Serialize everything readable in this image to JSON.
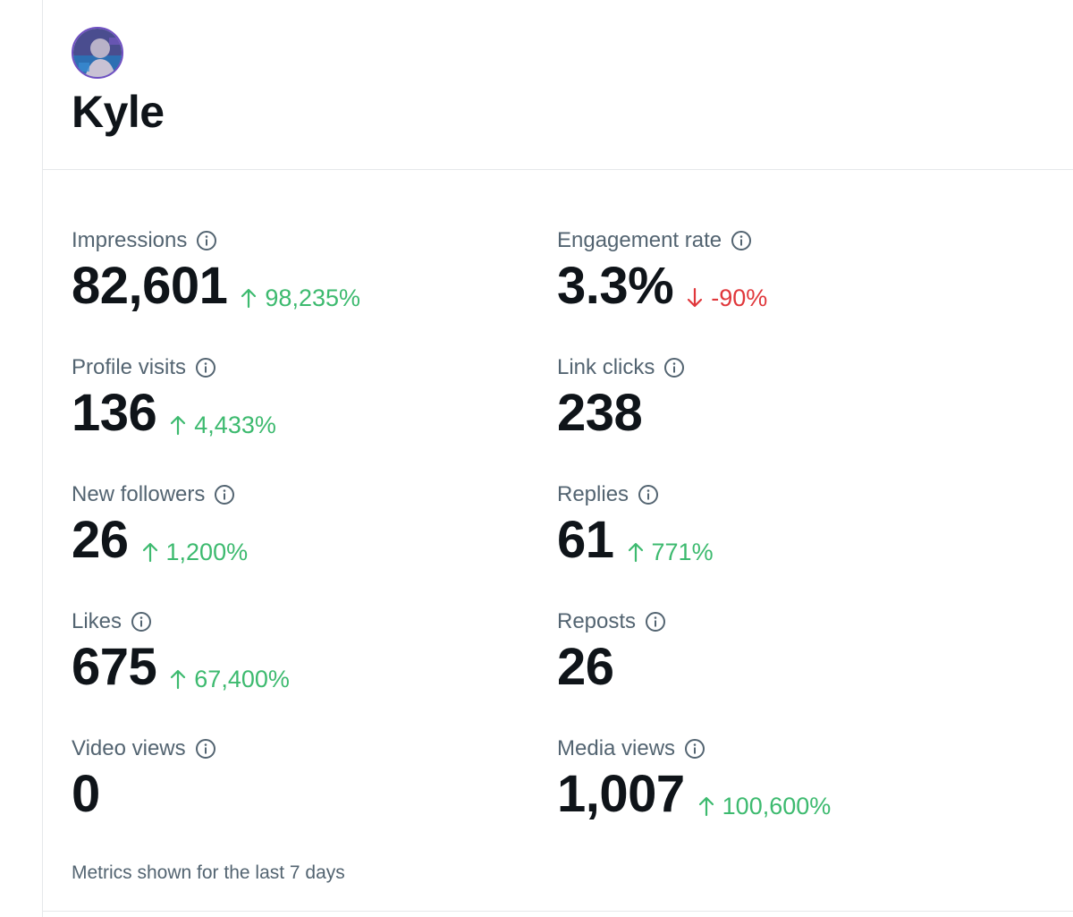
{
  "profile": {
    "name": "Kyle"
  },
  "colors": {
    "positive": "#3dba6f",
    "negative": "#e0373b",
    "label": "#536471"
  },
  "metrics": {
    "impressions": {
      "label": "Impressions",
      "value": "82,601",
      "change": "98,235%",
      "direction": "up"
    },
    "engagement_rate": {
      "label": "Engagement rate",
      "value": "3.3%",
      "change": "-90%",
      "direction": "down"
    },
    "profile_visits": {
      "label": "Profile visits",
      "value": "136",
      "change": "4,433%",
      "direction": "up"
    },
    "link_clicks": {
      "label": "Link clicks",
      "value": "238"
    },
    "new_followers": {
      "label": "New followers",
      "value": "26",
      "change": "1,200%",
      "direction": "up"
    },
    "replies": {
      "label": "Replies",
      "value": "61",
      "change": "771%",
      "direction": "up"
    },
    "likes": {
      "label": "Likes",
      "value": "675",
      "change": "67,400%",
      "direction": "up"
    },
    "reposts": {
      "label": "Reposts",
      "value": "26"
    },
    "video_views": {
      "label": "Video views",
      "value": "0"
    },
    "media_views": {
      "label": "Media views",
      "value": "1,007",
      "change": "100,600%",
      "direction": "up"
    }
  },
  "footer": {
    "note": "Metrics shown for the last 7 days"
  }
}
